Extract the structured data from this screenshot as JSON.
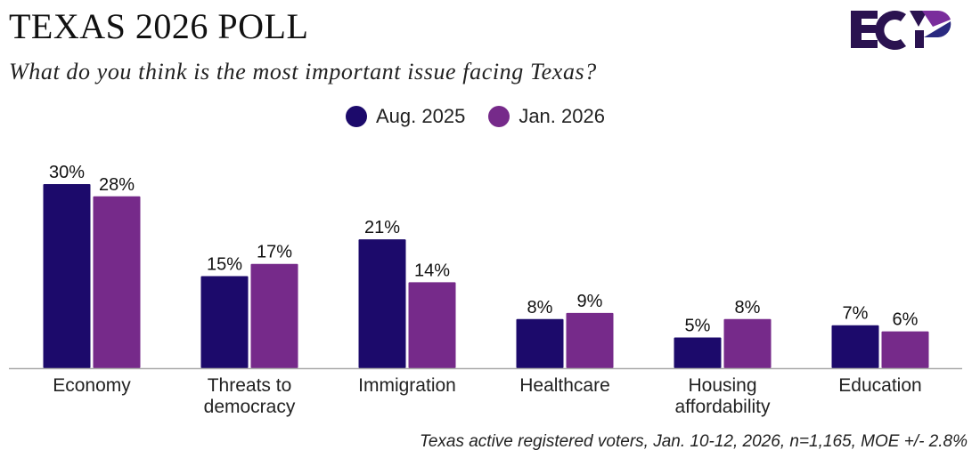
{
  "header": {
    "title": "TEXAS 2026 POLL",
    "subtitle": "What do you think is the most important issue facing Texas?",
    "logo_text": "ECP"
  },
  "footnote": "Texas active registered voters, Jan. 10-12, 2026, n=1,165, MOE +/- 2.8%",
  "chart_data": {
    "type": "bar",
    "title": "What do you think is the most important issue facing Texas?",
    "categories": [
      [
        "Economy"
      ],
      [
        "Threats to",
        "democracy"
      ],
      [
        "Immigration"
      ],
      [
        "Healthcare"
      ],
      [
        "Housing",
        "affordability"
      ],
      [
        "Education"
      ]
    ],
    "series": [
      {
        "name": "Aug. 2025",
        "color": "#1c0a6b",
        "values": [
          30,
          15,
          21,
          8,
          5,
          7
        ]
      },
      {
        "name": "Jan. 2026",
        "color": "#762a8a",
        "values": [
          28,
          17,
          14,
          9,
          8,
          6
        ]
      }
    ],
    "value_suffix": "%",
    "ylim": [
      0,
      30
    ],
    "legend": "top-center",
    "grid": false
  }
}
